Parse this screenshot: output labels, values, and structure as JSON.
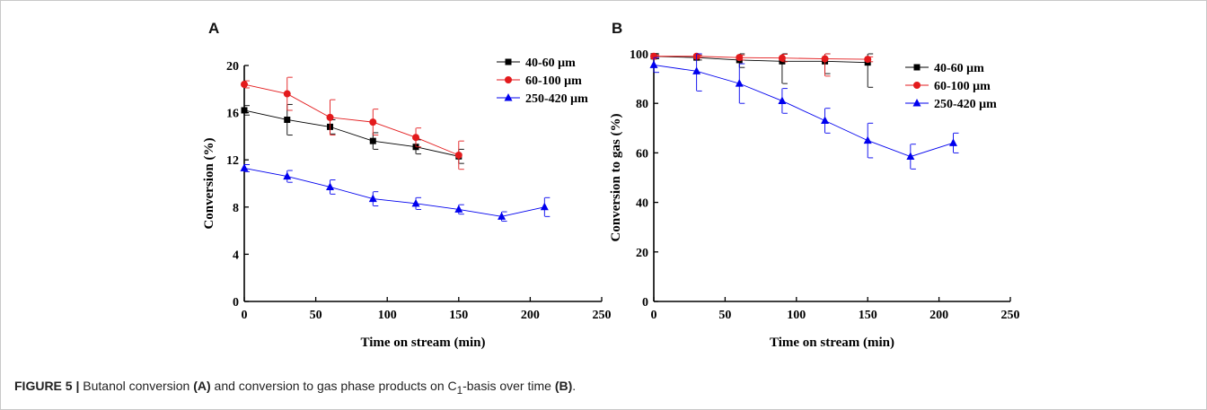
{
  "panels": [
    {
      "letter": "A"
    },
    {
      "letter": "B"
    }
  ],
  "caption": {
    "prefix": "FIGURE 5 | ",
    "t1": "Butanol conversion ",
    "a": "(A)",
    "t2": " and conversion to gas phase products on C",
    "sub": "1",
    "t3": "-basis over time ",
    "b": "(B)",
    "t4": "."
  },
  "colors": {
    "s40_60": "#000000",
    "s60_100": "#e31a1c",
    "s250_420": "#0000ee"
  },
  "chart_data": [
    {
      "type": "line",
      "panel": "A",
      "xlabel": "Time on stream (min)",
      "ylabel": "Conversion (%)",
      "xlim": [
        0,
        250
      ],
      "ylim": [
        0,
        20
      ],
      "xticks": [
        0,
        50,
        100,
        150,
        200,
        250
      ],
      "yticks": [
        0,
        4,
        8,
        12,
        16,
        20
      ],
      "grid": false,
      "legend": "top-right",
      "series": [
        {
          "name": "40-60 μm",
          "marker": "square",
          "color": "#000000",
          "x": [
            0,
            30,
            60,
            90,
            120,
            150
          ],
          "y": [
            16.2,
            15.4,
            14.8,
            13.6,
            13.1,
            12.3
          ],
          "err": [
            0.4,
            1.3,
            0.6,
            0.7,
            0.6,
            0.6
          ]
        },
        {
          "name": "60-100 μm",
          "marker": "circle",
          "color": "#e31a1c",
          "x": [
            0,
            30,
            60,
            90,
            120,
            150
          ],
          "y": [
            18.4,
            17.6,
            15.6,
            15.2,
            13.9,
            12.4
          ],
          "err": [
            0.3,
            1.4,
            1.5,
            1.1,
            0.8,
            1.2
          ]
        },
        {
          "name": "250-420 μm",
          "marker": "triangle",
          "color": "#0000ee",
          "x": [
            0,
            30,
            60,
            90,
            120,
            150,
            180,
            210
          ],
          "y": [
            11.3,
            10.6,
            9.7,
            8.7,
            8.3,
            7.8,
            7.2,
            8.0
          ],
          "err": [
            0.3,
            0.5,
            0.6,
            0.6,
            0.5,
            0.4,
            0.4,
            0.8
          ]
        }
      ]
    },
    {
      "type": "line",
      "panel": "B",
      "xlabel": "Time on stream (min)",
      "ylabel": "Conversion to gas (%)",
      "xlim": [
        0,
        250
      ],
      "ylim": [
        0,
        100
      ],
      "xticks": [
        0,
        50,
        100,
        150,
        200,
        250
      ],
      "yticks": [
        0,
        20,
        40,
        60,
        80,
        100
      ],
      "grid": false,
      "legend": "top-right",
      "series": [
        {
          "name": "40-60 μm",
          "marker": "square",
          "color": "#000000",
          "x": [
            0,
            30,
            60,
            90,
            120,
            150
          ],
          "y": [
            99,
            98.5,
            97.5,
            97,
            97,
            96.5
          ],
          "err": [
            1,
            1,
            3,
            9,
            5,
            10
          ]
        },
        {
          "name": "60-100 μm",
          "marker": "circle",
          "color": "#e31a1c",
          "x": [
            0,
            30,
            60,
            90,
            120,
            150
          ],
          "y": [
            99,
            99,
            98.5,
            98.3,
            98,
            97.8
          ],
          "err": [
            0.5,
            0.5,
            1,
            1.5,
            7,
            1
          ]
        },
        {
          "name": "250-420 μm",
          "marker": "triangle",
          "color": "#0000ee",
          "x": [
            0,
            30,
            60,
            90,
            120,
            150,
            180,
            210
          ],
          "y": [
            95.5,
            93,
            88,
            81,
            73,
            65,
            58.5,
            64
          ],
          "err": [
            3,
            8,
            8,
            5,
            5,
            7,
            5,
            4
          ]
        }
      ]
    }
  ]
}
